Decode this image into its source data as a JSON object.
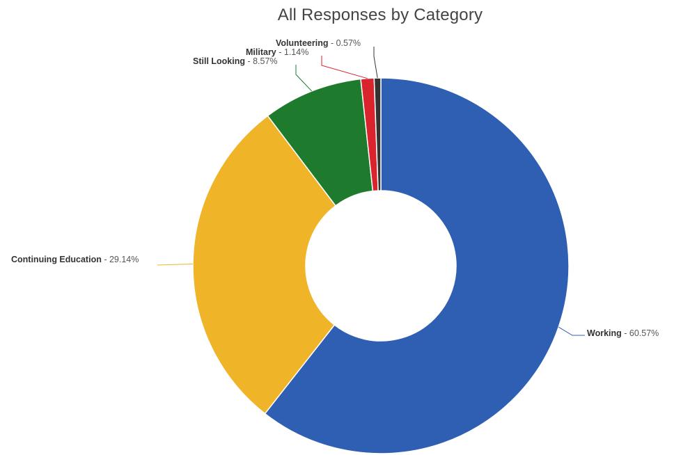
{
  "chart_data": {
    "type": "pie",
    "donut": true,
    "title": "All Responses by Category",
    "slices": [
      {
        "name": "Working",
        "value": 60.57,
        "label": "60.57%",
        "color": "#2f5fb3"
      },
      {
        "name": "Continuing Education",
        "value": 29.14,
        "label": "29.14%",
        "color": "#f0b429"
      },
      {
        "name": "Still Looking",
        "value": 8.57,
        "label": "8.57%",
        "color": "#1e7b2e"
      },
      {
        "name": "Military",
        "value": 1.14,
        "label": "1.14%",
        "color": "#d9232d"
      },
      {
        "name": "Volunteering",
        "value": 0.57,
        "label": "0.57%",
        "color": "#333333"
      }
    ],
    "legend": "none"
  }
}
